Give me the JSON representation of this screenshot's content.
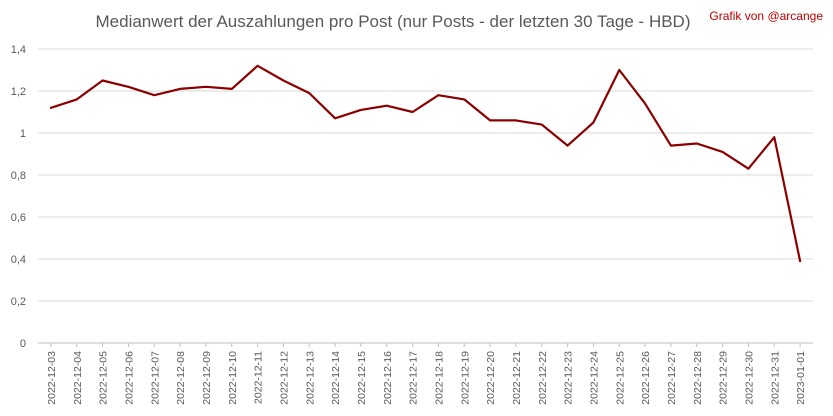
{
  "chart_data": {
    "type": "line",
    "title": "Medianwert der Auszahlungen pro Post (nur Posts - der letzten 30 Tage - HBD)",
    "credit": "Grafik von @arcange",
    "xlabel": "",
    "ylabel": "",
    "ylim": [
      0,
      1.4
    ],
    "y_ticks": [
      0,
      0.2,
      0.4,
      0.6,
      0.8,
      1,
      1.2,
      1.4
    ],
    "y_tick_labels": [
      "0",
      "0,2",
      "0,4",
      "0,6",
      "0,8",
      "1",
      "1,2",
      "1,4"
    ],
    "grid": true,
    "legend": "none",
    "categories": [
      "2022-12-03",
      "2022-12-04",
      "2022-12-05",
      "2022-12-06",
      "2022-12-07",
      "2022-12-08",
      "2022-12-09",
      "2022-12-10",
      "2022-12-11",
      "2022-12-12",
      "2022-12-13",
      "2022-12-14",
      "2022-12-15",
      "2022-12-16",
      "2022-12-17",
      "2022-12-18",
      "2022-12-19",
      "2022-12-20",
      "2022-12-21",
      "2022-12-22",
      "2022-12-23",
      "2022-12-24",
      "2022-12-25",
      "2022-12-26",
      "2022-12-27",
      "2022-12-28",
      "2022-12-29",
      "2022-12-30",
      "2022-12-31",
      "2023-01-01"
    ],
    "series": [
      {
        "color": "#8b0000",
        "values": [
          1.12,
          1.16,
          1.25,
          1.22,
          1.18,
          1.21,
          1.22,
          1.21,
          1.32,
          1.25,
          1.19,
          1.07,
          1.11,
          1.13,
          1.1,
          1.18,
          1.16,
          1.06,
          1.06,
          1.04,
          0.94,
          1.05,
          1.3,
          1.14,
          0.94,
          0.95,
          0.91,
          0.83,
          0.98,
          0.39
        ]
      }
    ]
  }
}
